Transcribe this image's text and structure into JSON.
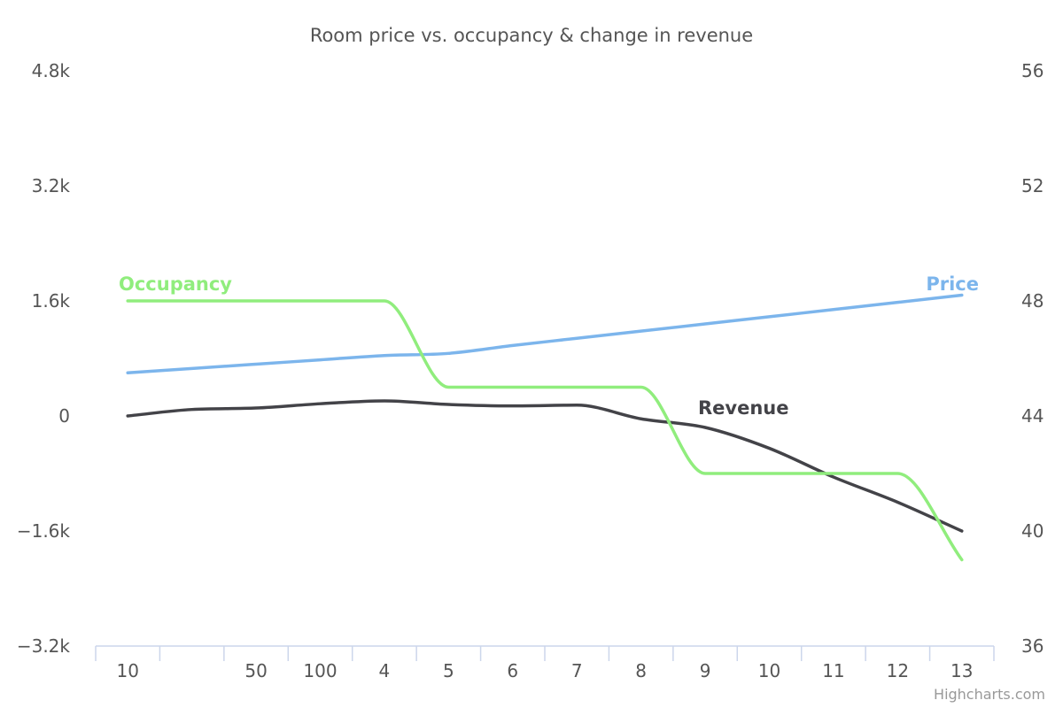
{
  "chart_data": {
    "type": "line",
    "title": "Room price vs. occupancy & change in revenue",
    "categories": [
      "10",
      "",
      "50",
      "100",
      "4",
      "5",
      "6",
      "7",
      "8",
      "9",
      "10",
      "11",
      "12",
      "13"
    ],
    "y_left": {
      "range": [
        -3200,
        4800
      ],
      "ticks": [
        4800,
        3200,
        1600,
        0,
        -1600,
        -3200
      ],
      "tick_labels": [
        "4.8k",
        "3.2k",
        "1.6k",
        "0",
        "−1.6k",
        "−3.2k"
      ]
    },
    "y_right": {
      "range": [
        36,
        56
      ],
      "ticks": [
        56,
        52,
        48,
        44,
        40,
        36
      ],
      "tick_labels": [
        "56",
        "52",
        "48",
        "44",
        "40",
        "36"
      ]
    },
    "grid": false,
    "legend": "none",
    "series": [
      {
        "name": "Occupancy",
        "axis": "left",
        "color": "#90ed7d",
        "values": [
          1600,
          1600,
          1600,
          1600,
          1600,
          400,
          400,
          400,
          400,
          -800,
          -800,
          -800,
          -800,
          -2000
        ]
      },
      {
        "name": "Price",
        "axis": "left",
        "color": "#7cb5ec",
        "values": [
          600,
          660,
          720,
          780,
          840,
          870,
          980,
          1080,
          1180,
          1280,
          1380,
          1480,
          1580,
          1680
        ]
      },
      {
        "name": "Revenue",
        "axis": "left",
        "color": "#434348",
        "values": [
          0,
          90,
          110,
          170,
          210,
          160,
          140,
          150,
          -40,
          -160,
          -450,
          -850,
          -1200,
          -1600
        ]
      }
    ],
    "credits": "Highcharts.com"
  }
}
